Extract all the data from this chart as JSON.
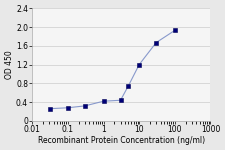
{
  "x": [
    0.031,
    0.1,
    0.3,
    1.0,
    3.0,
    5.0,
    10.0,
    30.0,
    100.0
  ],
  "y": [
    0.26,
    0.28,
    0.32,
    0.42,
    0.44,
    0.75,
    1.2,
    1.67,
    1.93
  ],
  "line_color": "#8899cc",
  "marker_color": "#000055",
  "marker_face": "#000077",
  "xlabel": "Recombinant Protein Concentration (ng/ml)",
  "ylabel": "OD 450",
  "xlim": [
    0.01,
    1000
  ],
  "ylim": [
    0,
    2.4
  ],
  "yticks": [
    0,
    0.4,
    0.8,
    1.2,
    1.6,
    2.0,
    2.4
  ],
  "xticks": [
    0.01,
    0.1,
    1,
    10,
    100,
    1000
  ],
  "xticklabels": [
    "0.01",
    "0.1",
    "1",
    "10",
    "100",
    "1000"
  ],
  "bg_color": "#e8e8e8",
  "plot_bg": "#f5f5f5",
  "label_fontsize": 5.5,
  "tick_fontsize": 5.5,
  "grid_color": "#cccccc"
}
